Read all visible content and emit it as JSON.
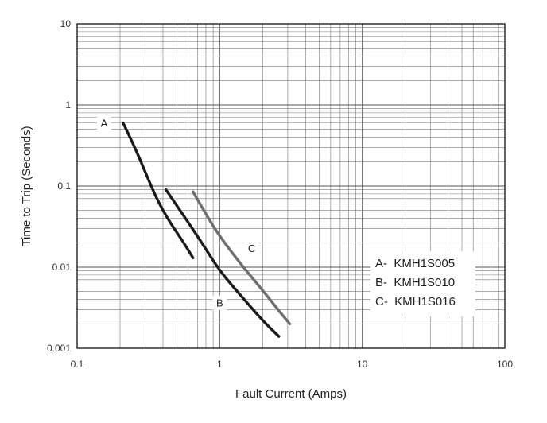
{
  "chart_data": {
    "type": "line",
    "title": "",
    "xlabel": "Fault Current (Amps)",
    "ylabel": "Time to Trip (Seconds)",
    "xscale": "log",
    "yscale": "log",
    "xlim": [
      0.1,
      100
    ],
    "ylim": [
      0.001,
      10
    ],
    "grid": true,
    "x_tick_labels": [
      "0.1",
      "1",
      "10",
      "100"
    ],
    "y_tick_labels": [
      "0.001",
      "0.01",
      "0.1",
      "1",
      "10"
    ],
    "legend_position": "bottom-right",
    "series": [
      {
        "key": "A",
        "legend": "A-  KMH1S005",
        "color": "#1a1a1a",
        "x": [
          0.21,
          0.25,
          0.3,
          0.36,
          0.45,
          0.55,
          0.65
        ],
        "y": [
          0.6,
          0.32,
          0.15,
          0.07,
          0.035,
          0.021,
          0.013
        ]
      },
      {
        "key": "B",
        "legend": "B-  KMH1S010",
        "color": "#1a1a1a",
        "x": [
          0.42,
          0.55,
          0.75,
          1.0,
          1.4,
          2.0,
          2.6
        ],
        "y": [
          0.09,
          0.045,
          0.02,
          0.009,
          0.0045,
          0.0022,
          0.0014
        ]
      },
      {
        "key": "C",
        "legend": "C-  KMH1S016",
        "color": "#6e6e6e",
        "x": [
          0.65,
          0.8,
          1.0,
          1.4,
          2.0,
          2.6,
          3.1
        ],
        "y": [
          0.085,
          0.045,
          0.024,
          0.011,
          0.0052,
          0.0029,
          0.002
        ]
      }
    ]
  }
}
